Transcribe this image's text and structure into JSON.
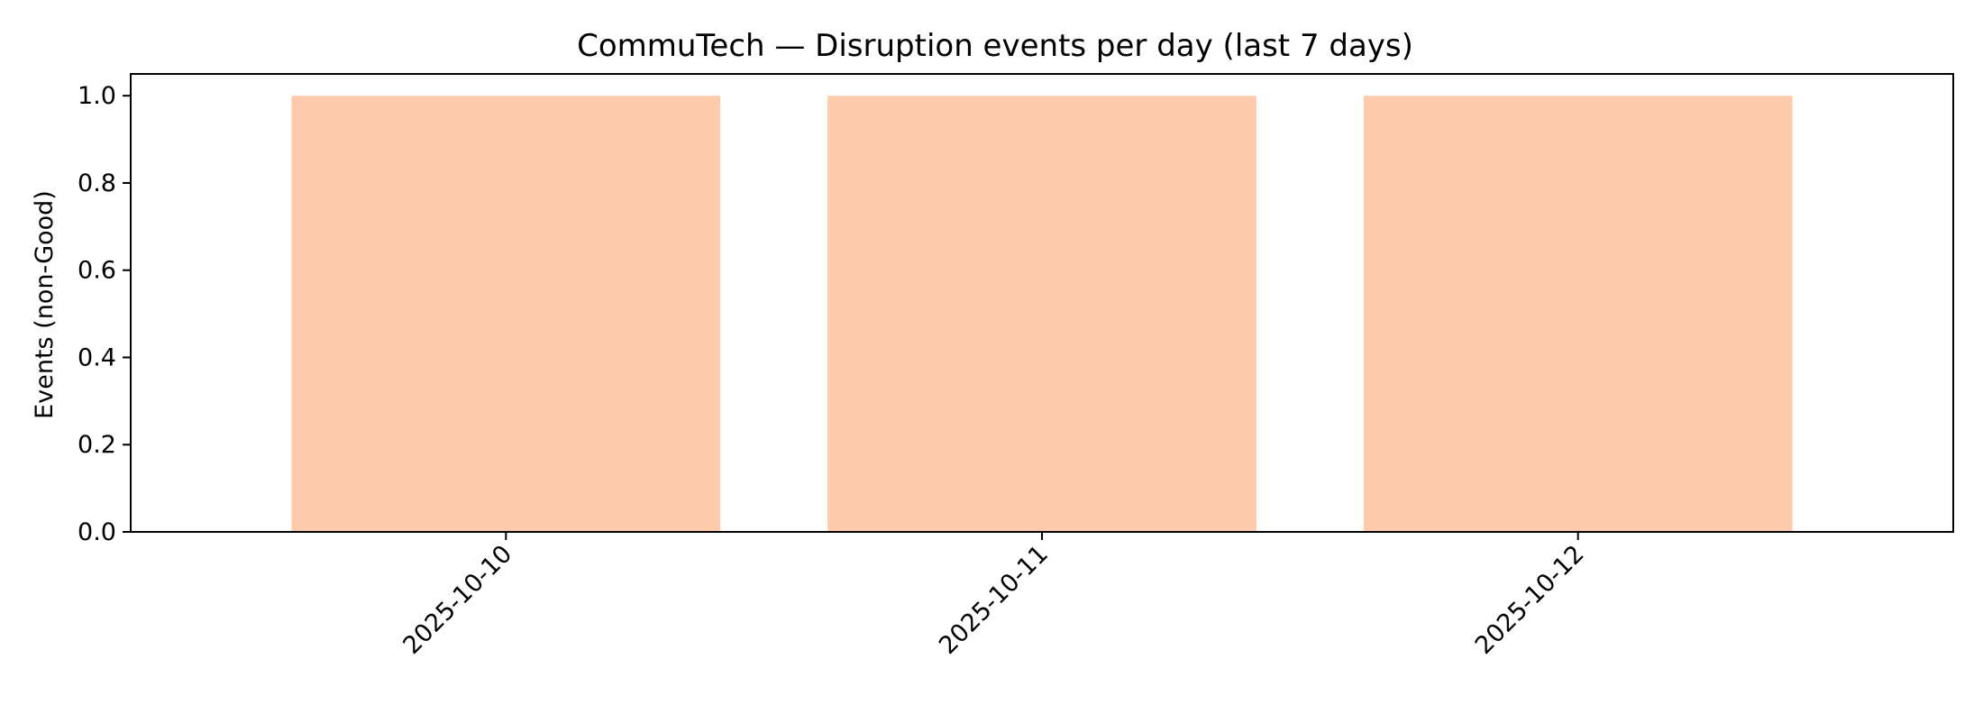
{
  "chart_data": {
    "type": "bar",
    "title": "CommuTech — Disruption events per day (last 7 days)",
    "xlabel": "",
    "ylabel": "Events (non-Good)",
    "categories": [
      "2025-10-10",
      "2025-10-11",
      "2025-10-12"
    ],
    "values": [
      1.0,
      1.0,
      1.0
    ],
    "ylim": [
      0,
      1.05
    ],
    "yticks": [
      "0.0",
      "0.2",
      "0.4",
      "0.6",
      "0.8",
      "1.0"
    ],
    "bar_color": "#fdcbab",
    "grid": false,
    "legend": "none"
  }
}
